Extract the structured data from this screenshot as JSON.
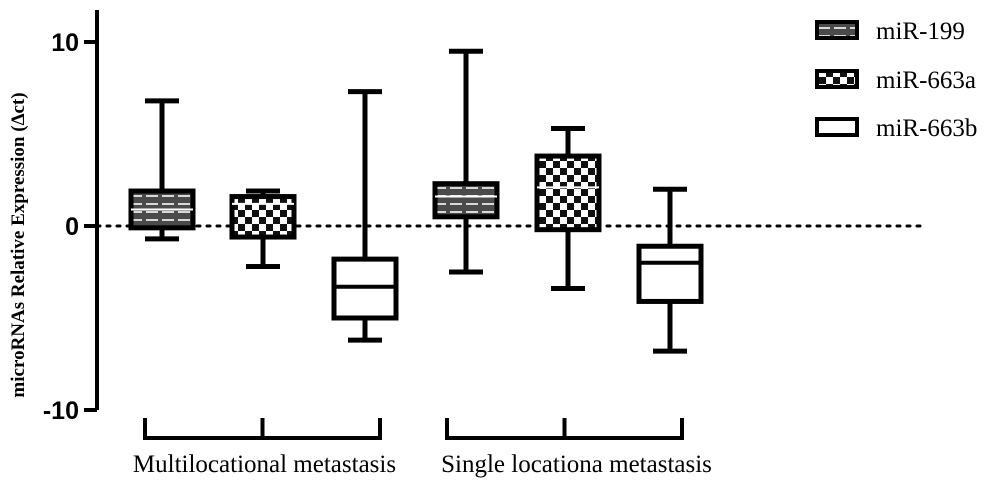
{
  "chart_data": {
    "type": "box",
    "ylabel": "microRNAs Relative Expression (Δct)",
    "xlabel": "",
    "ylim": [
      -10,
      12
    ],
    "yticks": [
      {
        "value": 10,
        "label": "10"
      },
      {
        "value": 0,
        "label": "0"
      },
      {
        "value": -10,
        "label": "-10"
      }
    ],
    "reference_line": {
      "value": 0,
      "style": "dotted"
    },
    "groups": [
      "Multilocational metastasis",
      "Single locationa metastasis"
    ],
    "series": [
      {
        "name": "miR-199",
        "pattern": "dashes"
      },
      {
        "name": "miR-663a",
        "pattern": "checker"
      },
      {
        "name": "miR-663b",
        "pattern": "none"
      }
    ],
    "boxes": [
      {
        "group": 0,
        "series": 0,
        "min": -0.7,
        "q1": -0.1,
        "median": 0.9,
        "q3": 1.9,
        "max": 6.8
      },
      {
        "group": 0,
        "series": 1,
        "min": -2.2,
        "q1": -0.6,
        "median": 1.2,
        "q3": 1.6,
        "max": 1.9
      },
      {
        "group": 0,
        "series": 2,
        "min": -6.2,
        "q1": -5.0,
        "median": -3.3,
        "q3": -1.8,
        "max": 7.3
      },
      {
        "group": 1,
        "series": 0,
        "min": -2.5,
        "q1": 0.5,
        "median": 1.6,
        "q3": 2.3,
        "max": 9.5
      },
      {
        "group": 1,
        "series": 1,
        "min": -3.4,
        "q1": -0.2,
        "median": 2.1,
        "q3": 3.8,
        "max": 5.3
      },
      {
        "group": 1,
        "series": 2,
        "min": -6.8,
        "q1": -4.1,
        "median": -2.0,
        "q3": -1.1,
        "max": 2.0
      }
    ],
    "legend_position": "top-right",
    "grid": false
  }
}
